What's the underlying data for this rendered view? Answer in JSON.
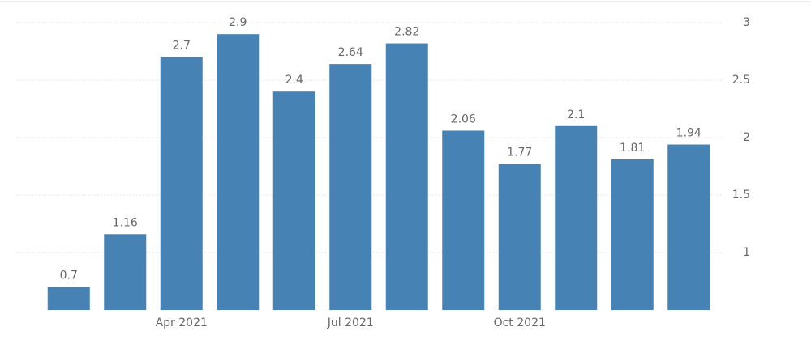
{
  "chart_data": {
    "type": "bar",
    "categories": [
      null,
      null,
      "Apr 2021",
      null,
      null,
      "Jul 2021",
      null,
      null,
      "Oct 2021",
      null,
      null,
      null
    ],
    "values": [
      0.7,
      1.16,
      2.7,
      2.9,
      2.4,
      2.64,
      2.82,
      2.06,
      1.77,
      2.1,
      1.81,
      1.94
    ],
    "color": "#4682b4",
    "ylim": [
      0.5,
      3
    ],
    "yticks": [
      1,
      1.5,
      2,
      2.5,
      3
    ],
    "grid": true
  }
}
